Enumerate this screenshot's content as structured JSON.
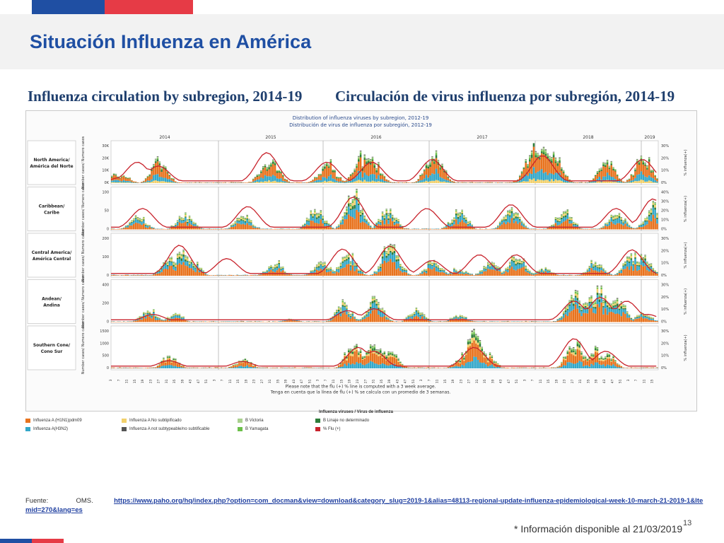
{
  "slide": {
    "title": "Situación Influenza en América",
    "figure_title_en": "Influenza circulation by subregion, 2014-19",
    "figure_title_es": "Circulación de virus influenza por subregión, 2014-19",
    "source_label": "Fuente:",
    "source_org": "OMS.",
    "source_url": "https://www.paho.org/hq/index.php?option=com_docman&view=download&category_slug=2019-1&alias=48113-regional-update-influenza-epidemiological-week-10-march-21-2019-1&Itemid=270&lang=es",
    "info_note": "* Información disponible al 21/03/2019",
    "page_number": "13",
    "colors": {
      "brand_blue": "#1f4fa3",
      "brand_red": "#e63b46"
    }
  },
  "chart_data": {
    "type": "bar",
    "title": "Distribution of influenza viruses by subregion, 2012-19",
    "subtitle": "Distribución de virus de influenza por subregión, 2012-19",
    "years": [
      "2014",
      "2015",
      "2016",
      "2017",
      "2018",
      "2019"
    ],
    "week_ticks": [
      "3",
      "7",
      "11",
      "15",
      "19",
      "23",
      "27",
      "31",
      "35",
      "39",
      "43",
      "47",
      "51"
    ],
    "note_en": "Please note that the flu (+) % line is computed with a 3 week average.",
    "note_es": "Tenga en cuenta que la línea de flu (+) % se calcula con un promedio de 3 semanas.",
    "ylabel_left": "Number cases/ Numero casos",
    "ylabel_right": "% influenza(+)",
    "legend_title": "Influenza viruses / Virus de influenza",
    "legend": [
      {
        "label": "Influenza A (H1N1)pdm09",
        "color": "#e8731e"
      },
      {
        "label": "Influenza A(H3N2)",
        "color": "#33a7c9"
      },
      {
        "label": "Influenza A No subtipificado",
        "color": "#f2d06b"
      },
      {
        "label": "Influenza A not subtypeable/no subtificable",
        "color": "#555555"
      },
      {
        "label": "B Victoria",
        "color": "#a9d08e"
      },
      {
        "label": "B Yamagata",
        "color": "#6cc04a"
      },
      {
        "label": "B Linaje no determinado",
        "color": "#2e7d3a"
      },
      {
        "label": "% Flu (+)",
        "color": "#c8232c"
      }
    ],
    "subregions": [
      {
        "name": "North America/ América del Norte",
        "yticks": [
          "0K",
          "10K",
          "20K",
          "30K"
        ],
        "ymax": 30000,
        "pticks": [
          "0%",
          "10%",
          "20%",
          "30%"
        ],
        "pmax": 30,
        "peaks": [
          [
            2,
            0.25
          ],
          [
            10,
            0.2
          ],
          [
            45,
            0.6
          ],
          [
            148,
            0.55
          ],
          [
            152,
            0.55
          ],
          [
            205,
            0.5
          ],
          [
            240,
            0.7
          ],
          [
            238,
            0.72
          ],
          [
            248,
            0.6
          ],
          [
            305,
            0.65
          ],
          [
            308,
            0.75
          ],
          [
            400,
            0.9
          ],
          [
            410,
            0.98
          ],
          [
            420,
            0.75
          ],
          [
            470,
            0.6
          ],
          [
            505,
            0.68
          ]
        ],
        "flu_peaks": [
          [
            10,
            0.15
          ],
          [
            25,
            0.55
          ],
          [
            45,
            0.45
          ],
          [
            148,
            0.8
          ],
          [
            205,
            0.55
          ],
          [
            248,
            0.55
          ],
          [
            305,
            0.62
          ],
          [
            410,
            0.72
          ],
          [
            505,
            0.62
          ]
        ]
      },
      {
        "name": "Caribbean/ Caribe",
        "yticks": [
          "0",
          "50",
          "100"
        ],
        "ymax": 110,
        "pticks": [
          "0%",
          "10%",
          "20%",
          "30%",
          "40%"
        ],
        "pmax": 40,
        "peaks": [
          [
            25,
            0.35
          ],
          [
            70,
            0.4
          ],
          [
            125,
            0.4
          ],
          [
            195,
            0.55
          ],
          [
            230,
            0.9
          ],
          [
            262,
            0.55
          ],
          [
            330,
            0.5
          ],
          [
            380,
            0.55
          ],
          [
            430,
            0.5
          ],
          [
            480,
            0.45
          ],
          [
            515,
            0.65
          ]
        ],
        "flu_peaks": [
          [
            30,
            0.55
          ],
          [
            130,
            0.6
          ],
          [
            230,
            0.85
          ],
          [
            300,
            0.55
          ],
          [
            380,
            0.65
          ],
          [
            480,
            0.55
          ],
          [
            515,
            0.8
          ]
        ]
      },
      {
        "name": "Central America/ América Central",
        "yticks": [
          "0",
          "100",
          "200"
        ],
        "ymax": 210,
        "pticks": [
          "0%",
          "10%",
          "20%",
          "30%"
        ],
        "pmax": 30,
        "peaks": [
          [
            55,
            0.45
          ],
          [
            65,
            0.55
          ],
          [
            75,
            0.45
          ],
          [
            155,
            0.35
          ],
          [
            200,
            0.4
          ],
          [
            225,
            0.55
          ],
          [
            265,
            0.85
          ],
          [
            305,
            0.35
          ],
          [
            330,
            0.2
          ],
          [
            360,
            0.35
          ],
          [
            385,
            0.55
          ],
          [
            410,
            0.2
          ],
          [
            460,
            0.35
          ],
          [
            495,
            0.55
          ],
          [
            505,
            0.45
          ]
        ],
        "flu_peaks": [
          [
            65,
            0.8
          ],
          [
            110,
            0.45
          ],
          [
            220,
            0.7
          ],
          [
            265,
            0.78
          ],
          [
            305,
            0.4
          ],
          [
            350,
            0.55
          ],
          [
            385,
            0.55
          ],
          [
            495,
            0.68
          ]
        ]
      },
      {
        "name": "Andean/ Andina",
        "yticks": [
          "0",
          "200",
          "400"
        ],
        "ymax": 420,
        "pticks": [
          "0%",
          "10%",
          "20%",
          "30%"
        ],
        "pmax": 30,
        "peaks": [
          [
            35,
            0.3
          ],
          [
            60,
            0.2
          ],
          [
            170,
            0.1
          ],
          [
            220,
            0.45
          ],
          [
            250,
            0.55
          ],
          [
            290,
            0.3
          ],
          [
            330,
            0.18
          ],
          [
            440,
            0.75
          ],
          [
            455,
            0.55
          ],
          [
            465,
            0.85
          ],
          [
            480,
            0.7
          ],
          [
            505,
            0.25
          ]
        ],
        "flu_peaks": [
          [
            40,
            0.2
          ],
          [
            225,
            0.3
          ],
          [
            250,
            0.35
          ],
          [
            440,
            0.55
          ],
          [
            465,
            0.65
          ],
          [
            490,
            0.55
          ],
          [
            510,
            0.2
          ]
        ]
      },
      {
        "name": "Southern Cone/ Cono Sur",
        "yticks": [
          "0",
          "500",
          "1000",
          "1500"
        ],
        "ymax": 1600,
        "pticks": [
          "0%",
          "10%",
          "20%",
          "30%"
        ],
        "pmax": 30,
        "peaks": [
          [
            55,
            0.3
          ],
          [
            125,
            0.25
          ],
          [
            230,
            0.6
          ],
          [
            250,
            0.65
          ],
          [
            265,
            0.45
          ],
          [
            335,
            0.35
          ],
          [
            345,
            0.95
          ],
          [
            355,
            0.4
          ],
          [
            440,
            0.7
          ],
          [
            460,
            0.45
          ],
          [
            470,
            0.4
          ]
        ],
        "flu_peaks": [
          [
            55,
            0.2
          ],
          [
            125,
            0.18
          ],
          [
            235,
            0.55
          ],
          [
            250,
            0.45
          ],
          [
            345,
            0.55
          ],
          [
            440,
            0.78
          ],
          [
            470,
            0.45
          ]
        ]
      }
    ]
  }
}
